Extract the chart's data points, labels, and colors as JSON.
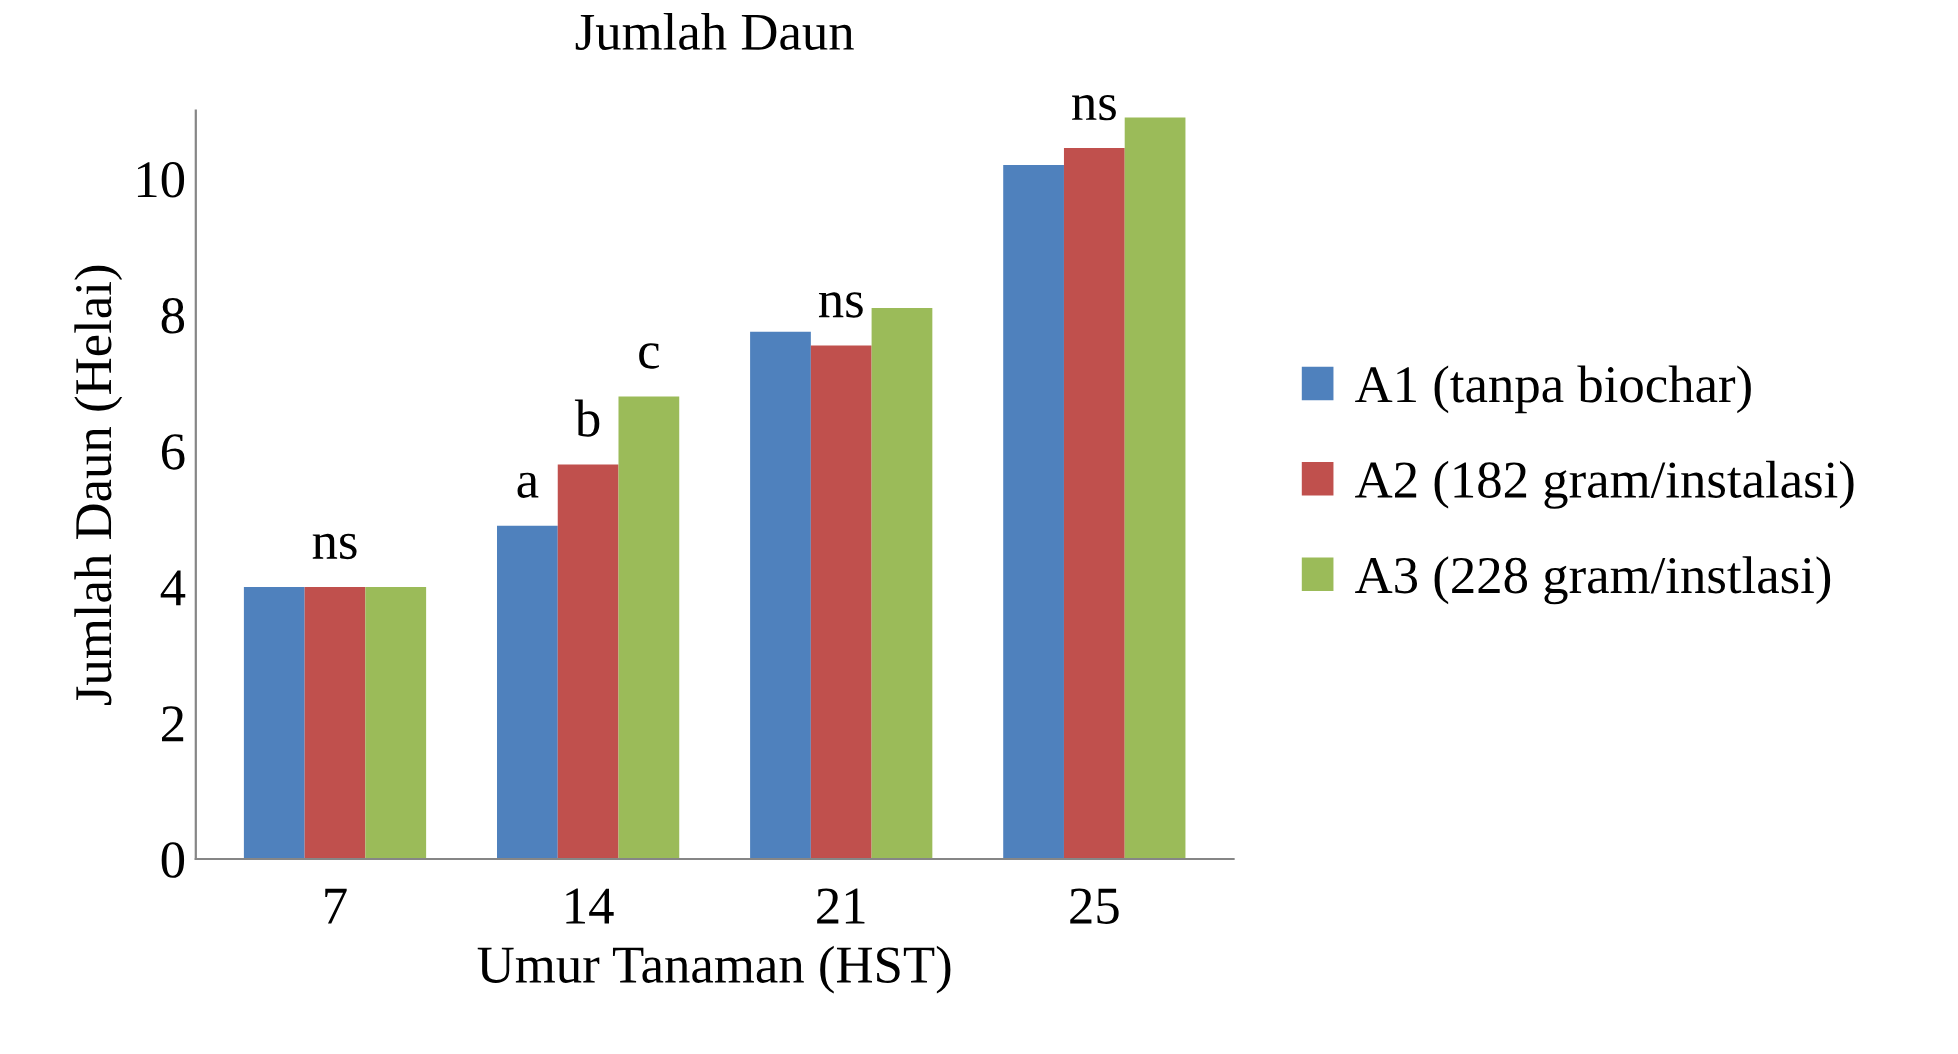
{
  "chart_data": {
    "type": "bar",
    "title": "Jumlah Daun",
    "xlabel": "Umur Tanaman (HST)",
    "ylabel": "Jumlah Daun (Helai)",
    "categories": [
      "7",
      "14",
      "21",
      "25"
    ],
    "series": [
      {
        "name": "A1 (tanpa biochar)",
        "color": "#4f81bd",
        "values": [
          4,
          4.9,
          7.75,
          10.2
        ],
        "value_labels": [
          null,
          "a",
          null,
          null
        ]
      },
      {
        "name": "A2 (182 gram/instalasi)",
        "color": "#c0504d",
        "values": [
          4,
          5.8,
          7.55,
          10.45
        ],
        "value_labels": [
          "ns",
          "b",
          "ns",
          "ns"
        ]
      },
      {
        "name": "A3 (228 gram/instlasi)",
        "color": "#9bbb59",
        "values": [
          4,
          6.8,
          8.1,
          10.9
        ],
        "value_labels": [
          null,
          "c",
          null,
          null
        ]
      }
    ],
    "ylim": [
      0,
      11
    ],
    "yticks": [
      0,
      2,
      4,
      6,
      8,
      10
    ],
    "grid": false,
    "legend": "right"
  }
}
